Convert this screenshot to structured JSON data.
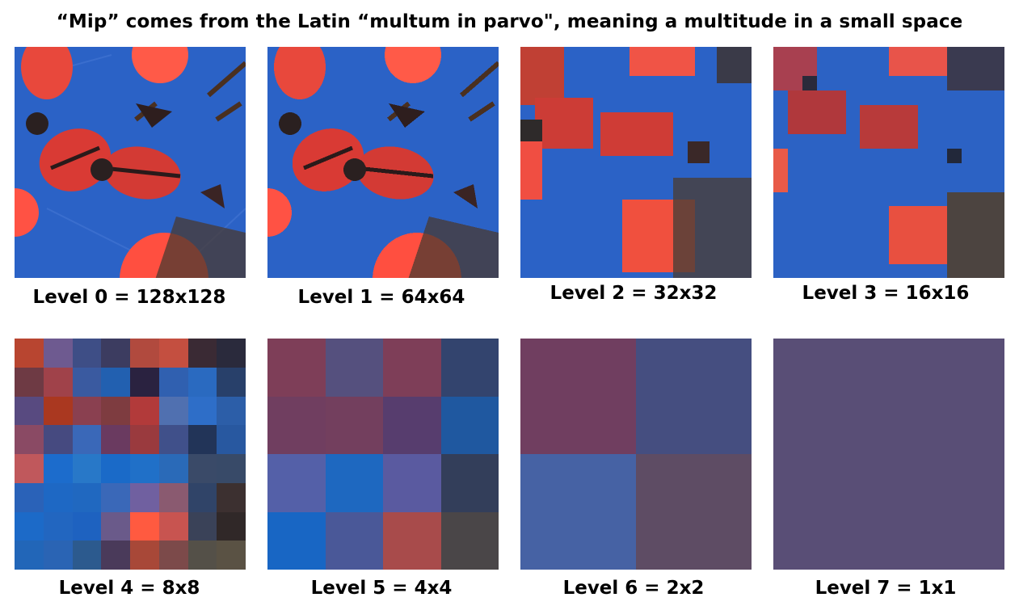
{
  "title": "“Mip” comes from the Latin “multum in parvo\", meaning a multitude in a small space",
  "levels": [
    {
      "label": "Level 0 = 128x128"
    },
    {
      "label": "Level 1 = 64x64"
    },
    {
      "label": "Level 2 = 32x32"
    },
    {
      "label": "Level 3 = 16x16"
    },
    {
      "label": "Level 4 = 8x8"
    },
    {
      "label": "Level 5 = 4x4"
    },
    {
      "label": "Level 6 = 2x2"
    },
    {
      "label": "Level 7 = 1x1"
    }
  ],
  "colors": {
    "level4": [
      "#b84530",
      "#6e5a90",
      "#3e4e86",
      "#3c3c60",
      "#b14a3e",
      "#c44f40",
      "#3a2a34",
      "#2a2a3c",
      "#6e3a44",
      "#a0424a",
      "#3a5aa0",
      "#2260b0",
      "#2a2240",
      "#3060b0",
      "#2a6ac0",
      "#28406a",
      "#584a80",
      "#aa3820",
      "#8a4050",
      "#7e3c40",
      "#b23a3a",
      "#5070b0",
      "#2e6ec8",
      "#2c5ea8",
      "#8a4a64",
      "#464a80",
      "#3a68b8",
      "#6a3a60",
      "#9a3a3e",
      "#40508a",
      "#223458",
      "#2858a0",
      "#c0585c",
      "#1c6ccc",
      "#2878c8",
      "#1a6ac8",
      "#2070c8",
      "#2a6ab8",
      "#3a4a68",
      "#384a68",
      "#2a62b8",
      "#1e68c4",
      "#2068c0",
      "#3a68b8",
      "#7060a0",
      "#8a5a70",
      "#304468",
      "#3c3030",
      "#1c6ac8",
      "#2266c0",
      "#1e62c0",
      "#6a5a8a",
      "#ff5a40",
      "#c85450",
      "#3a4258",
      "#302828",
      "#2266b8",
      "#2a64b4",
      "#2c5a8e",
      "#4a3a5a",
      "#a84838",
      "#7c4a4a",
      "#545048",
      "#5a5244"
    ],
    "level5": [
      "#7e3e58",
      "#55507e",
      "#7e3e58",
      "#33446e",
      "#703e60",
      "#733f5e",
      "#573d6e",
      "#1f58a0",
      "#5460a8",
      "#1e68c0",
      "#5a5aa0",
      "#333e5a",
      "#1866c4",
      "#4a5898",
      "#a84b4b",
      "#4a4648"
    ],
    "level6": [
      "#703e60",
      "#454e80",
      "#4662a4",
      "#5e4c64"
    ],
    "level7": [
      "#594e76"
    ]
  }
}
